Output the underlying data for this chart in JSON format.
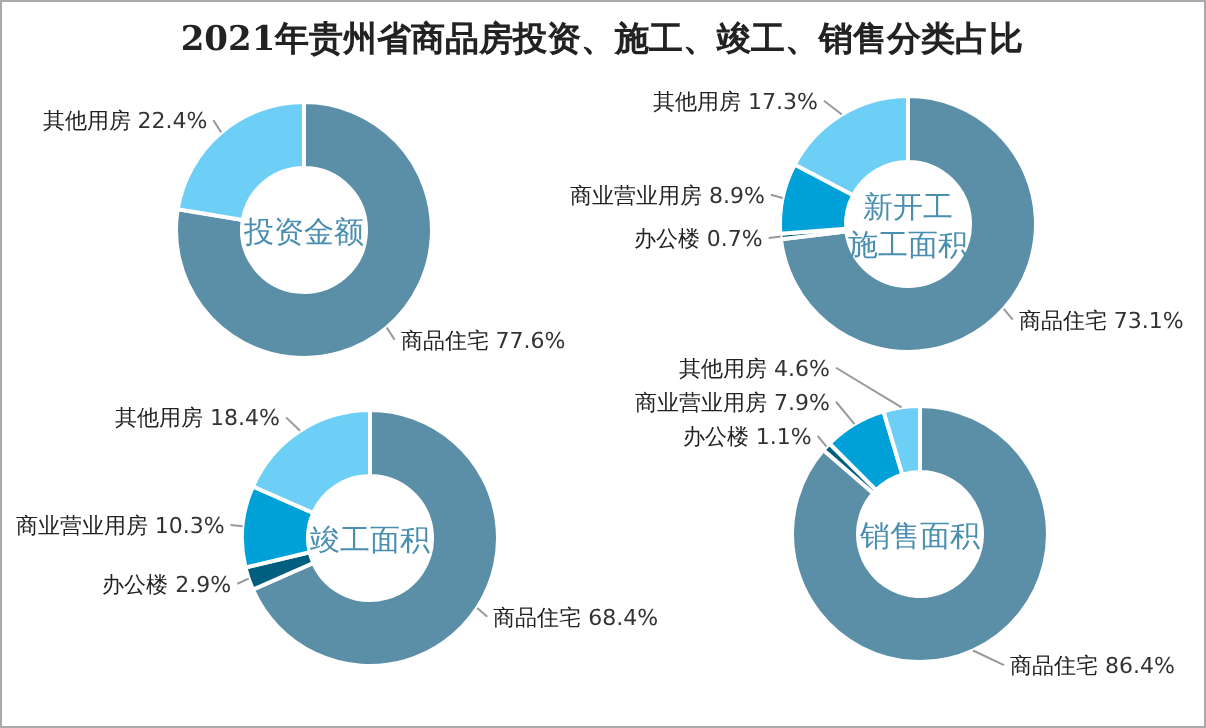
{
  "chart_data": [
    {
      "type": "donut",
      "title": "2021年贵州省商品房投资、施工、竣工、销售分类占比",
      "subtitle": "投资金额",
      "categories": [
        "商品住宅",
        "其他用房"
      ],
      "values": [
        77.6,
        22.4
      ],
      "value_labels": [
        "77.6%",
        "22.4%"
      ],
      "colors": [
        "#5b8fa8",
        "#6dcff6"
      ]
    },
    {
      "type": "donut",
      "subtitle": "新开工施工面积",
      "categories": [
        "商品住宅",
        "办公楼",
        "商业营业用房",
        "其他用房"
      ],
      "values": [
        73.1,
        0.7,
        8.9,
        17.3
      ],
      "value_labels": [
        "73.1%",
        "0.7%",
        "8.9%",
        "17.3%"
      ],
      "colors": [
        "#5b8fa8",
        "#005f7f",
        "#00a0d8",
        "#6dcff6"
      ]
    },
    {
      "type": "donut",
      "subtitle": "竣工面积",
      "categories": [
        "商品住宅",
        "办公楼",
        "商业营业用房",
        "其他用房"
      ],
      "values": [
        68.4,
        2.9,
        10.3,
        18.4
      ],
      "value_labels": [
        "68.4%",
        "2.9%",
        "10.3%",
        "18.4%"
      ],
      "colors": [
        "#5b8fa8",
        "#005f7f",
        "#00a0d8",
        "#6dcff6"
      ]
    },
    {
      "type": "donut",
      "subtitle": "销售面积",
      "categories": [
        "商品住宅",
        "办公楼",
        "商业营业用房",
        "其他用房"
      ],
      "values": [
        86.4,
        1.1,
        7.9,
        4.6
      ],
      "value_labels": [
        "86.4%",
        "1.1%",
        "7.9%",
        "4.6%"
      ],
      "colors": [
        "#5b8fa8",
        "#005f7f",
        "#00a0d8",
        "#6dcff6"
      ]
    }
  ]
}
